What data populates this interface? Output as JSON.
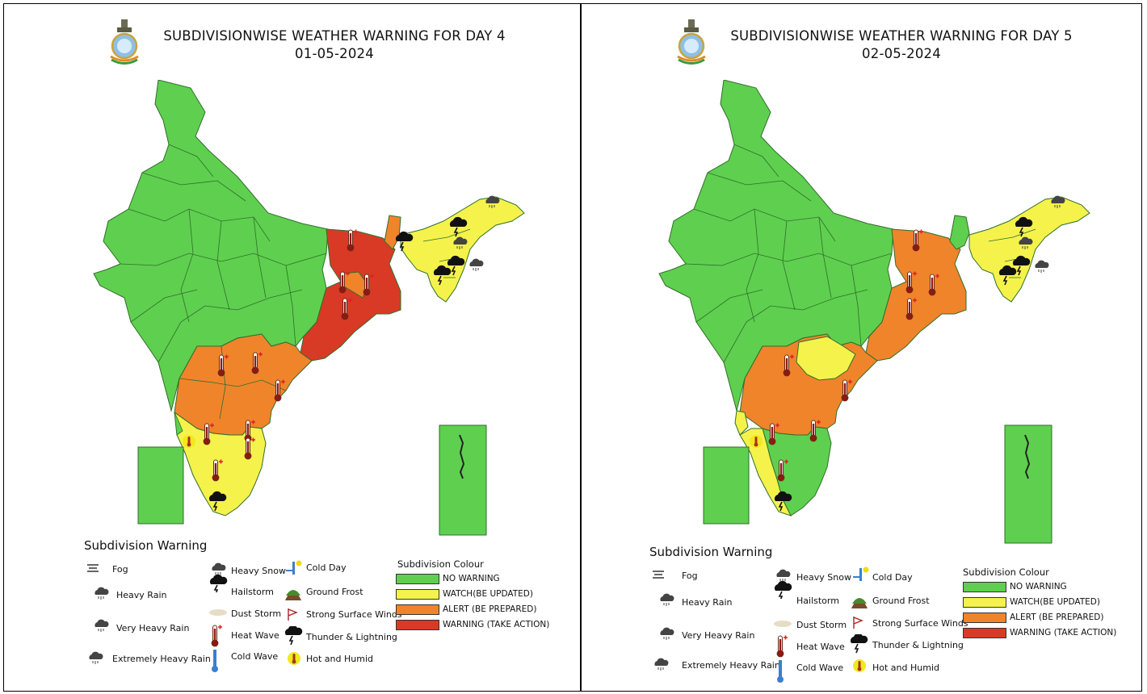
{
  "colors": {
    "no_warning": "#5fcf4f",
    "watch": "#f5f24b",
    "alert": "#f0842b",
    "warning": "#d93a26",
    "boundary": "#2f6e2a"
  },
  "panels": [
    {
      "title": "SUBDIVISIONWISE WEATHER WARNING FOR DAY 4",
      "date": "01-05-2024"
    },
    {
      "title": "SUBDIVISIONWISE WEATHER WARNING FOR DAY 5",
      "date": "02-05-2024"
    }
  ],
  "legend": {
    "title": "Subdivision Warning",
    "items": {
      "fog": "Fog",
      "heavy_rain": "Heavy Rain",
      "very_heavy_rain": "Very Heavy Rain",
      "extremely_heavy_rain": "Extremely Heavy Rain",
      "heavy_snow": "Heavy Snow",
      "hailstorm": "Hailstorm",
      "dust_storm": "Dust Storm",
      "heat_wave": "Heat Wave",
      "cold_wave": "Cold Wave",
      "cold_day": "Cold Day",
      "ground_frost": "Ground Frost",
      "strong_surface_winds": "Strong Surface Winds",
      "thunder_lightning": "Thunder & Lightning",
      "hot_humid": "Hot and Humid"
    },
    "colour_title": "Subdivision Colour",
    "colours": {
      "no_warning": "NO WARNING",
      "watch": "WATCH(BE UPDATED)",
      "alert": "ALERT (BE PREPARED)",
      "warning": "WARNING (TAKE ACTION)"
    }
  },
  "icons": [
    "national-emblem-icon",
    "heat-wave-icon",
    "thunderstorm-icon",
    "hot-humid-icon",
    "heavy-rain-icon"
  ]
}
